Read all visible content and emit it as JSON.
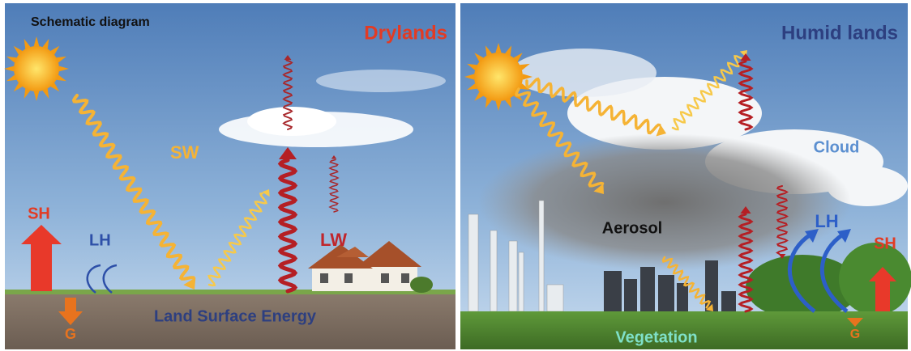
{
  "left": {
    "heading": "Schematic diagram",
    "title": "Drylands",
    "sw": "SW",
    "lw": "LW",
    "sh": "SH",
    "lh": "LH",
    "g": "G",
    "surface": "Land Surface Energy"
  },
  "right": {
    "title": "Humid lands",
    "cloud": "Cloud",
    "aerosol": "Aerosol",
    "lh": "LH",
    "sh": "SH",
    "g": "G",
    "vegetation": "Vegetation"
  }
}
